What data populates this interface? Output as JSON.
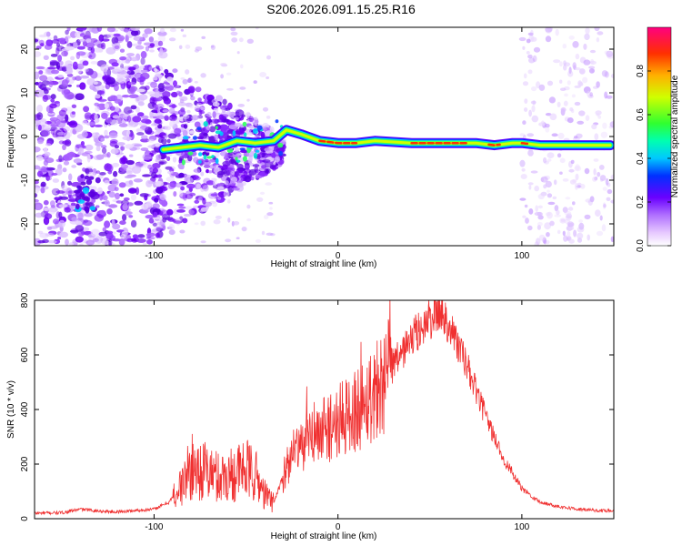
{
  "title": "S206.2026.091.15.25.R16",
  "chart_data": [
    {
      "type": "heatmap",
      "xlabel": "Height of straight line (km)",
      "ylabel": "Frequency (Hz)",
      "xlim": [
        -165,
        150
      ],
      "ylim": [
        -25,
        25
      ],
      "xticks": [
        -100,
        0,
        100
      ],
      "yticks": [
        -20,
        -10,
        0,
        10,
        20
      ],
      "xtick_labels": [
        "-100",
        "0",
        "100"
      ],
      "ytick_labels": [
        "-20",
        "-10",
        "0",
        "10",
        "20"
      ],
      "colorbar": {
        "label": "Normalized spectral amplitude",
        "range": [
          0,
          1
        ],
        "ticks": [
          0.0,
          0.2,
          0.4,
          0.6,
          0.8
        ],
        "tick_labels": [
          "0.0",
          "0.2",
          "0.4",
          "0.6",
          "0.8"
        ]
      },
      "ridge": {
        "x": [
          -95,
          -85,
          -75,
          -65,
          -55,
          -45,
          -35,
          -28,
          -20,
          -10,
          0,
          10,
          20,
          40,
          60,
          75,
          85,
          95,
          100,
          110,
          120,
          130,
          140,
          148
        ],
        "y": [
          -3,
          -2.5,
          -2,
          -2.5,
          -1,
          -1.5,
          -1,
          1.5,
          0.5,
          -1,
          -1.5,
          -1.5,
          -1,
          -1.5,
          -1.5,
          -1.5,
          -2,
          -1.5,
          -1.5,
          -2,
          -2,
          -2,
          -2,
          -2
        ]
      }
    },
    {
      "type": "line",
      "xlabel": "Height of straight line (km)",
      "ylabel": "SNR (10 * v/v)",
      "xlim": [
        -165,
        150
      ],
      "ylim": [
        0,
        800
      ],
      "xticks": [
        -100,
        0,
        100
      ],
      "yticks": [
        0,
        200,
        400,
        600,
        800
      ],
      "xtick_labels": [
        "-100",
        "0",
        "100"
      ],
      "ytick_labels": [
        "0",
        "200",
        "400",
        "600",
        "800"
      ],
      "color": "#f03030",
      "series": [
        {
          "name": "SNR",
          "x": [
            -165,
            -150,
            -140,
            -130,
            -120,
            -110,
            -100,
            -92,
            -85,
            -80,
            -75,
            -70,
            -65,
            -60,
            -55,
            -50,
            -45,
            -40,
            -35,
            -30,
            -25,
            -20,
            -15,
            -10,
            0,
            10,
            20,
            30,
            40,
            50,
            55,
            60,
            70,
            80,
            90,
            100,
            110,
            120,
            130,
            140,
            150
          ],
          "y": [
            20,
            22,
            35,
            28,
            25,
            30,
            35,
            60,
            120,
            190,
            180,
            170,
            150,
            160,
            170,
            180,
            160,
            90,
            60,
            150,
            230,
            260,
            300,
            320,
            350,
            400,
            470,
            560,
            660,
            730,
            760,
            720,
            560,
            380,
            220,
            110,
            60,
            45,
            35,
            30,
            30
          ]
        }
      ]
    }
  ]
}
